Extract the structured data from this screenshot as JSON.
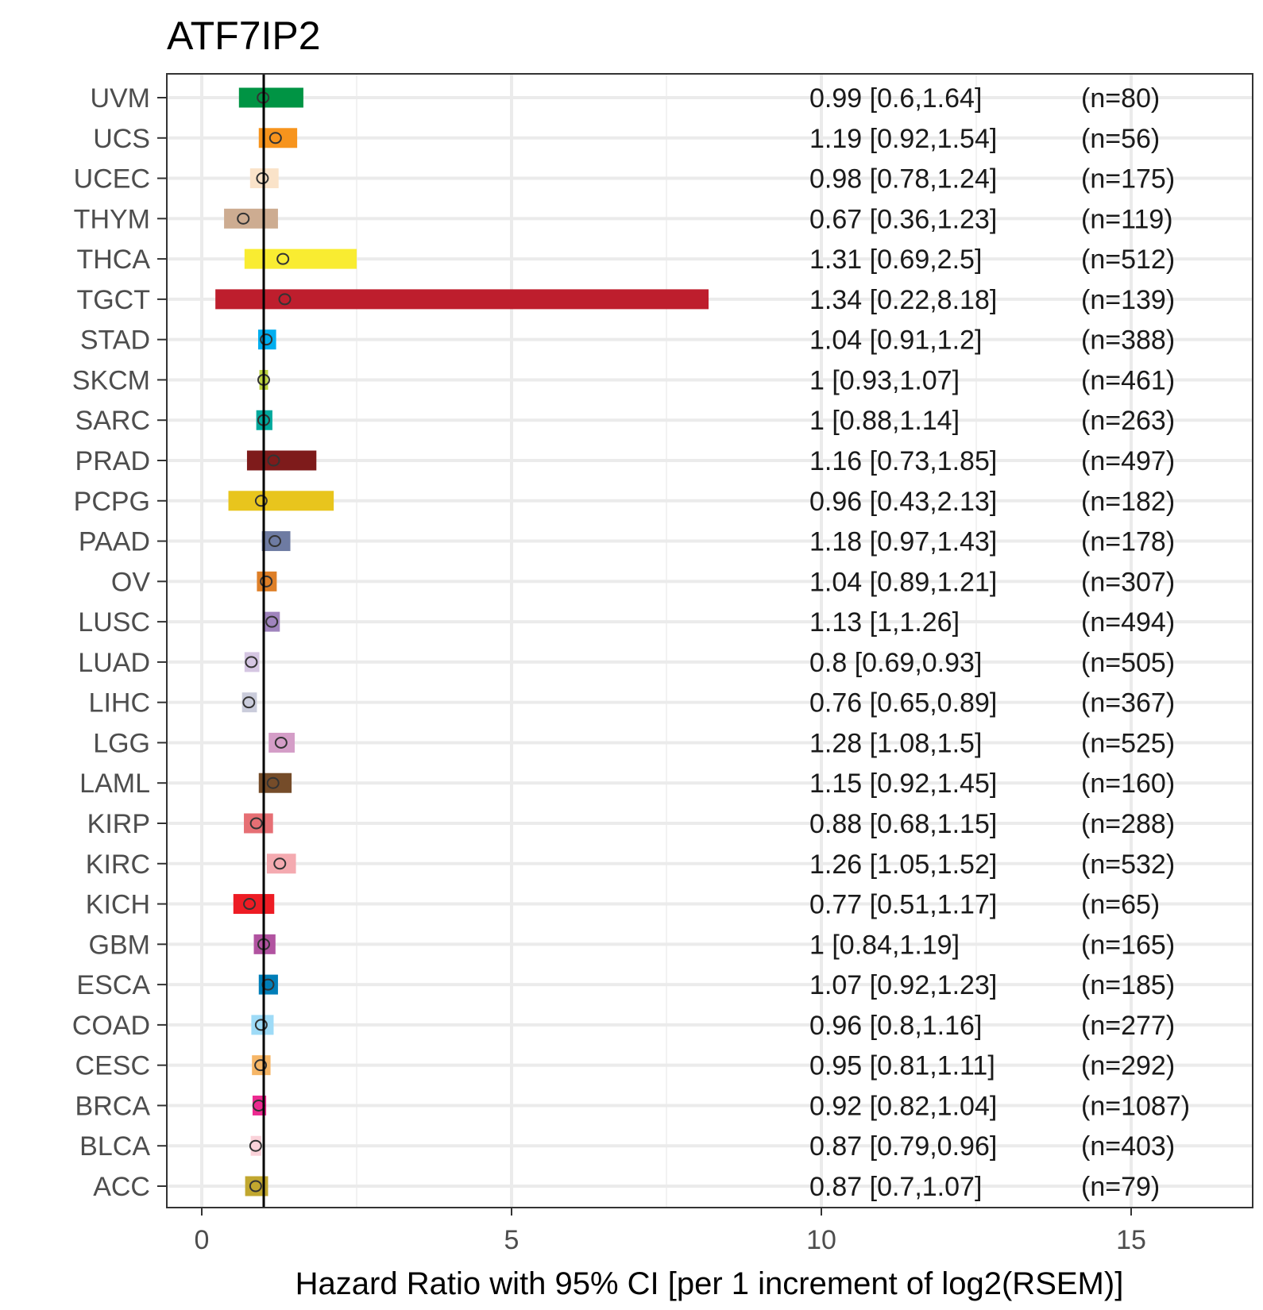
{
  "chart_data": {
    "type": "forest",
    "title": "ATF7IP2",
    "xlabel": "Hazard Ratio with 95% CI [per 1 increment of log2(RSEM)]",
    "xlim": [
      -0.6,
      16.95
    ],
    "xticks": [
      0,
      5,
      10,
      15
    ],
    "xtick_labels": [
      "0",
      "5",
      "10",
      "15"
    ],
    "reference_line": 1,
    "grid": true,
    "rows": [
      {
        "cancer": "UVM",
        "hr": 0.99,
        "lo": 0.6,
        "hi": 1.64,
        "label": "0.99 [0.6,1.64]",
        "n": "(n=80)",
        "color": "#009444"
      },
      {
        "cancer": "UCS",
        "hr": 1.19,
        "lo": 0.92,
        "hi": 1.54,
        "label": "1.19 [0.92,1.54]",
        "n": "(n=56)",
        "color": "#F7941D"
      },
      {
        "cancer": "UCEC",
        "hr": 0.98,
        "lo": 0.78,
        "hi": 1.24,
        "label": "0.98 [0.78,1.24]",
        "n": "(n=175)",
        "color": "#FAE3C9"
      },
      {
        "cancer": "THYM",
        "hr": 0.67,
        "lo": 0.36,
        "hi": 1.23,
        "label": "0.67 [0.36,1.23]",
        "n": "(n=119)",
        "color": "#CDAC91"
      },
      {
        "cancer": "THCA",
        "hr": 1.31,
        "lo": 0.69,
        "hi": 2.5,
        "label": "1.31 [0.69,2.5]",
        "n": "(n=512)",
        "color": "#F9EC31"
      },
      {
        "cancer": "TGCT",
        "hr": 1.34,
        "lo": 0.22,
        "hi": 8.18,
        "label": "1.34 [0.22,8.18]",
        "n": "(n=139)",
        "color": "#BE1E2D"
      },
      {
        "cancer": "STAD",
        "hr": 1.04,
        "lo": 0.91,
        "hi": 1.2,
        "label": "1.04 [0.91,1.2]",
        "n": "(n=388)",
        "color": "#00AEEF"
      },
      {
        "cancer": "SKCM",
        "hr": 1,
        "lo": 0.93,
        "hi": 1.07,
        "label": "1 [0.93,1.07]",
        "n": "(n=461)",
        "color": "#BCD441"
      },
      {
        "cancer": "SARC",
        "hr": 1,
        "lo": 0.88,
        "hi": 1.14,
        "label": "1 [0.88,1.14]",
        "n": "(n=263)",
        "color": "#00A99D"
      },
      {
        "cancer": "PRAD",
        "hr": 1.16,
        "lo": 0.73,
        "hi": 1.85,
        "label": "1.16 [0.73,1.85]",
        "n": "(n=497)",
        "color": "#7E1B1B"
      },
      {
        "cancer": "PCPG",
        "hr": 0.96,
        "lo": 0.43,
        "hi": 2.13,
        "label": "0.96 [0.43,2.13]",
        "n": "(n=182)",
        "color": "#E8C51D"
      },
      {
        "cancer": "PAAD",
        "hr": 1.18,
        "lo": 0.97,
        "hi": 1.43,
        "label": "1.18 [0.97,1.43]",
        "n": "(n=178)",
        "color": "#6E7BA2"
      },
      {
        "cancer": "OV",
        "hr": 1.04,
        "lo": 0.89,
        "hi": 1.21,
        "label": "1.04 [0.89,1.21]",
        "n": "(n=307)",
        "color": "#DE7F27"
      },
      {
        "cancer": "LUSC",
        "hr": 1.13,
        "lo": 1,
        "hi": 1.26,
        "label": "1.13 [1,1.26]",
        "n": "(n=494)",
        "color": "#A084BD"
      },
      {
        "cancer": "LUAD",
        "hr": 0.8,
        "lo": 0.69,
        "hi": 0.93,
        "label": "0.8 [0.69,0.93]",
        "n": "(n=505)",
        "color": "#D5C6E2"
      },
      {
        "cancer": "LIHC",
        "hr": 0.76,
        "lo": 0.65,
        "hi": 0.89,
        "label": "0.76 [0.65,0.89]",
        "n": "(n=367)",
        "color": "#CACCDB"
      },
      {
        "cancer": "LGG",
        "hr": 1.28,
        "lo": 1.08,
        "hi": 1.5,
        "label": "1.28 [1.08,1.5]",
        "n": "(n=525)",
        "color": "#D49DC7"
      },
      {
        "cancer": "LAML",
        "hr": 1.15,
        "lo": 0.92,
        "hi": 1.45,
        "label": "1.15 [0.92,1.45]",
        "n": "(n=160)",
        "color": "#754C29"
      },
      {
        "cancer": "KIRP",
        "hr": 0.88,
        "lo": 0.68,
        "hi": 1.15,
        "label": "0.88 [0.68,1.15]",
        "n": "(n=288)",
        "color": "#E66F74"
      },
      {
        "cancer": "KIRC",
        "hr": 1.26,
        "lo": 1.05,
        "hi": 1.52,
        "label": "1.26 [1.05,1.52]",
        "n": "(n=532)",
        "color": "#F4AAB0"
      },
      {
        "cancer": "KICH",
        "hr": 0.77,
        "lo": 0.51,
        "hi": 1.17,
        "label": "0.77 [0.51,1.17]",
        "n": "(n=65)",
        "color": "#ED1C24"
      },
      {
        "cancer": "GBM",
        "hr": 1,
        "lo": 0.84,
        "hi": 1.19,
        "label": "1 [0.84,1.19]",
        "n": "(n=165)",
        "color": "#B153A0"
      },
      {
        "cancer": "ESCA",
        "hr": 1.07,
        "lo": 0.92,
        "hi": 1.23,
        "label": "1.07 [0.92,1.23]",
        "n": "(n=185)",
        "color": "#007EB8"
      },
      {
        "cancer": "COAD",
        "hr": 0.96,
        "lo": 0.8,
        "hi": 1.16,
        "label": "0.96 [0.8,1.16]",
        "n": "(n=277)",
        "color": "#9EDBF7"
      },
      {
        "cancer": "CESC",
        "hr": 0.95,
        "lo": 0.81,
        "hi": 1.11,
        "label": "0.95 [0.81,1.11]",
        "n": "(n=292)",
        "color": "#F6B667"
      },
      {
        "cancer": "BRCA",
        "hr": 0.92,
        "lo": 0.82,
        "hi": 1.04,
        "label": "0.92 [0.82,1.04]",
        "n": "(n=1087)",
        "color": "#EC2A90"
      },
      {
        "cancer": "BLCA",
        "hr": 0.87,
        "lo": 0.79,
        "hi": 0.96,
        "label": "0.87 [0.79,0.96]",
        "n": "(n=403)",
        "color": "#FAD2D9"
      },
      {
        "cancer": "ACC",
        "hr": 0.87,
        "lo": 0.7,
        "hi": 1.07,
        "label": "0.87 [0.7,1.07]",
        "n": "(n=79)",
        "color": "#C1A72F"
      }
    ]
  }
}
